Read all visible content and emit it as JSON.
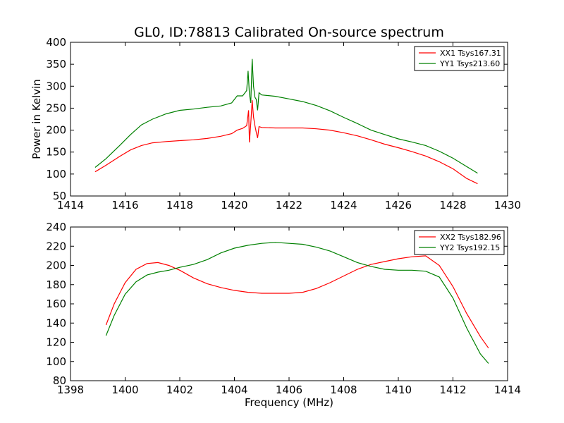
{
  "figure": {
    "title": "GL0, ID:78813 Calibrated On-source spectrum",
    "colors": {
      "red": "#ff0000",
      "green": "#008000"
    }
  },
  "chart_data": [
    {
      "type": "line",
      "title": "GL0, ID:78813 Calibrated On-source spectrum",
      "xlabel": "",
      "ylabel": "Power in Kelvin",
      "xlim": [
        1414,
        1430
      ],
      "ylim": [
        50,
        400
      ],
      "xticks": [
        1414,
        1416,
        1418,
        1420,
        1422,
        1424,
        1426,
        1428,
        1430
      ],
      "yticks": [
        50,
        100,
        150,
        200,
        250,
        300,
        350,
        400
      ],
      "legend_position": "top-right",
      "grid": false,
      "series": [
        {
          "name": "XX1 Tsys167.31",
          "color": "#ff0000",
          "x": [
            1414.9,
            1415.3,
            1415.8,
            1416.2,
            1416.6,
            1417.0,
            1417.5,
            1418.0,
            1418.5,
            1419.0,
            1419.5,
            1419.9,
            1420.1,
            1420.3,
            1420.45,
            1420.52,
            1420.55,
            1420.6,
            1420.65,
            1420.7,
            1420.75,
            1420.8,
            1420.85,
            1420.9,
            1421.0,
            1421.5,
            1422.0,
            1422.5,
            1423.0,
            1423.5,
            1424.0,
            1424.5,
            1425.0,
            1425.5,
            1426.0,
            1426.5,
            1427.0,
            1427.5,
            1428.0,
            1428.5,
            1428.9
          ],
          "y": [
            105,
            120,
            140,
            155,
            165,
            171,
            174,
            176,
            178,
            181,
            186,
            192,
            200,
            204,
            210,
            245,
            172,
            215,
            268,
            230,
            210,
            195,
            182,
            208,
            206,
            205,
            205,
            205,
            203,
            200,
            194,
            187,
            178,
            168,
            160,
            151,
            141,
            128,
            112,
            90,
            78
          ]
        },
        {
          "name": "YY1 Tsys213.60",
          "color": "#008000",
          "x": [
            1414.9,
            1415.3,
            1415.8,
            1416.2,
            1416.6,
            1417.0,
            1417.5,
            1418.0,
            1418.5,
            1419.0,
            1419.5,
            1419.9,
            1420.1,
            1420.3,
            1420.45,
            1420.5,
            1420.55,
            1420.6,
            1420.65,
            1420.7,
            1420.75,
            1420.8,
            1420.85,
            1420.9,
            1421.0,
            1421.5,
            1422.0,
            1422.5,
            1423.0,
            1423.5,
            1424.0,
            1424.5,
            1425.0,
            1425.5,
            1426.0,
            1426.5,
            1427.0,
            1427.5,
            1428.0,
            1428.5,
            1428.9
          ],
          "y": [
            115,
            135,
            165,
            190,
            212,
            225,
            237,
            245,
            248,
            252,
            255,
            262,
            278,
            278,
            290,
            335,
            282,
            262,
            362,
            300,
            275,
            270,
            245,
            285,
            280,
            277,
            271,
            265,
            256,
            244,
            229,
            215,
            200,
            190,
            180,
            173,
            165,
            152,
            136,
            117,
            102
          ]
        }
      ]
    },
    {
      "type": "line",
      "title": "",
      "xlabel": "Frequency (MHz)",
      "ylabel": "",
      "xlim": [
        1398,
        1414
      ],
      "ylim": [
        80,
        240
      ],
      "xticks": [
        1398,
        1400,
        1402,
        1404,
        1406,
        1408,
        1410,
        1412,
        1414
      ],
      "yticks": [
        80,
        100,
        120,
        140,
        160,
        180,
        200,
        220,
        240
      ],
      "legend_position": "top-right",
      "grid": false,
      "series": [
        {
          "name": "XX2 Tsys182.96",
          "color": "#ff0000",
          "x": [
            1399.3,
            1399.6,
            1400.0,
            1400.4,
            1400.8,
            1401.2,
            1401.6,
            1402.0,
            1402.5,
            1403.0,
            1403.5,
            1404.0,
            1404.5,
            1405.0,
            1405.5,
            1406.0,
            1406.5,
            1407.0,
            1407.5,
            1408.0,
            1408.5,
            1409.0,
            1409.5,
            1410.0,
            1410.5,
            1411.0,
            1411.5,
            1412.0,
            1412.5,
            1413.0,
            1413.3
          ],
          "y": [
            138,
            160,
            182,
            196,
            202,
            203,
            200,
            195,
            187,
            181,
            177,
            174,
            172,
            171,
            171,
            171,
            172,
            176,
            182,
            189,
            196,
            201,
            204,
            207,
            209,
            210,
            200,
            178,
            150,
            126,
            114
          ]
        },
        {
          "name": "YY2 Tsys192.15",
          "color": "#008000",
          "x": [
            1399.3,
            1399.6,
            1400.0,
            1400.4,
            1400.8,
            1401.2,
            1401.6,
            1402.0,
            1402.5,
            1403.0,
            1403.5,
            1404.0,
            1404.5,
            1405.0,
            1405.5,
            1406.0,
            1406.5,
            1407.0,
            1407.5,
            1408.0,
            1408.5,
            1409.0,
            1409.5,
            1410.0,
            1410.5,
            1411.0,
            1411.5,
            1412.0,
            1412.5,
            1413.0,
            1413.3
          ],
          "y": [
            127,
            148,
            170,
            183,
            190,
            193,
            195,
            198,
            201,
            206,
            213,
            218,
            221,
            223,
            224,
            223,
            222,
            219,
            215,
            209,
            203,
            199,
            196,
            195,
            195,
            194,
            188,
            166,
            135,
            108,
            98
          ]
        }
      ]
    }
  ]
}
